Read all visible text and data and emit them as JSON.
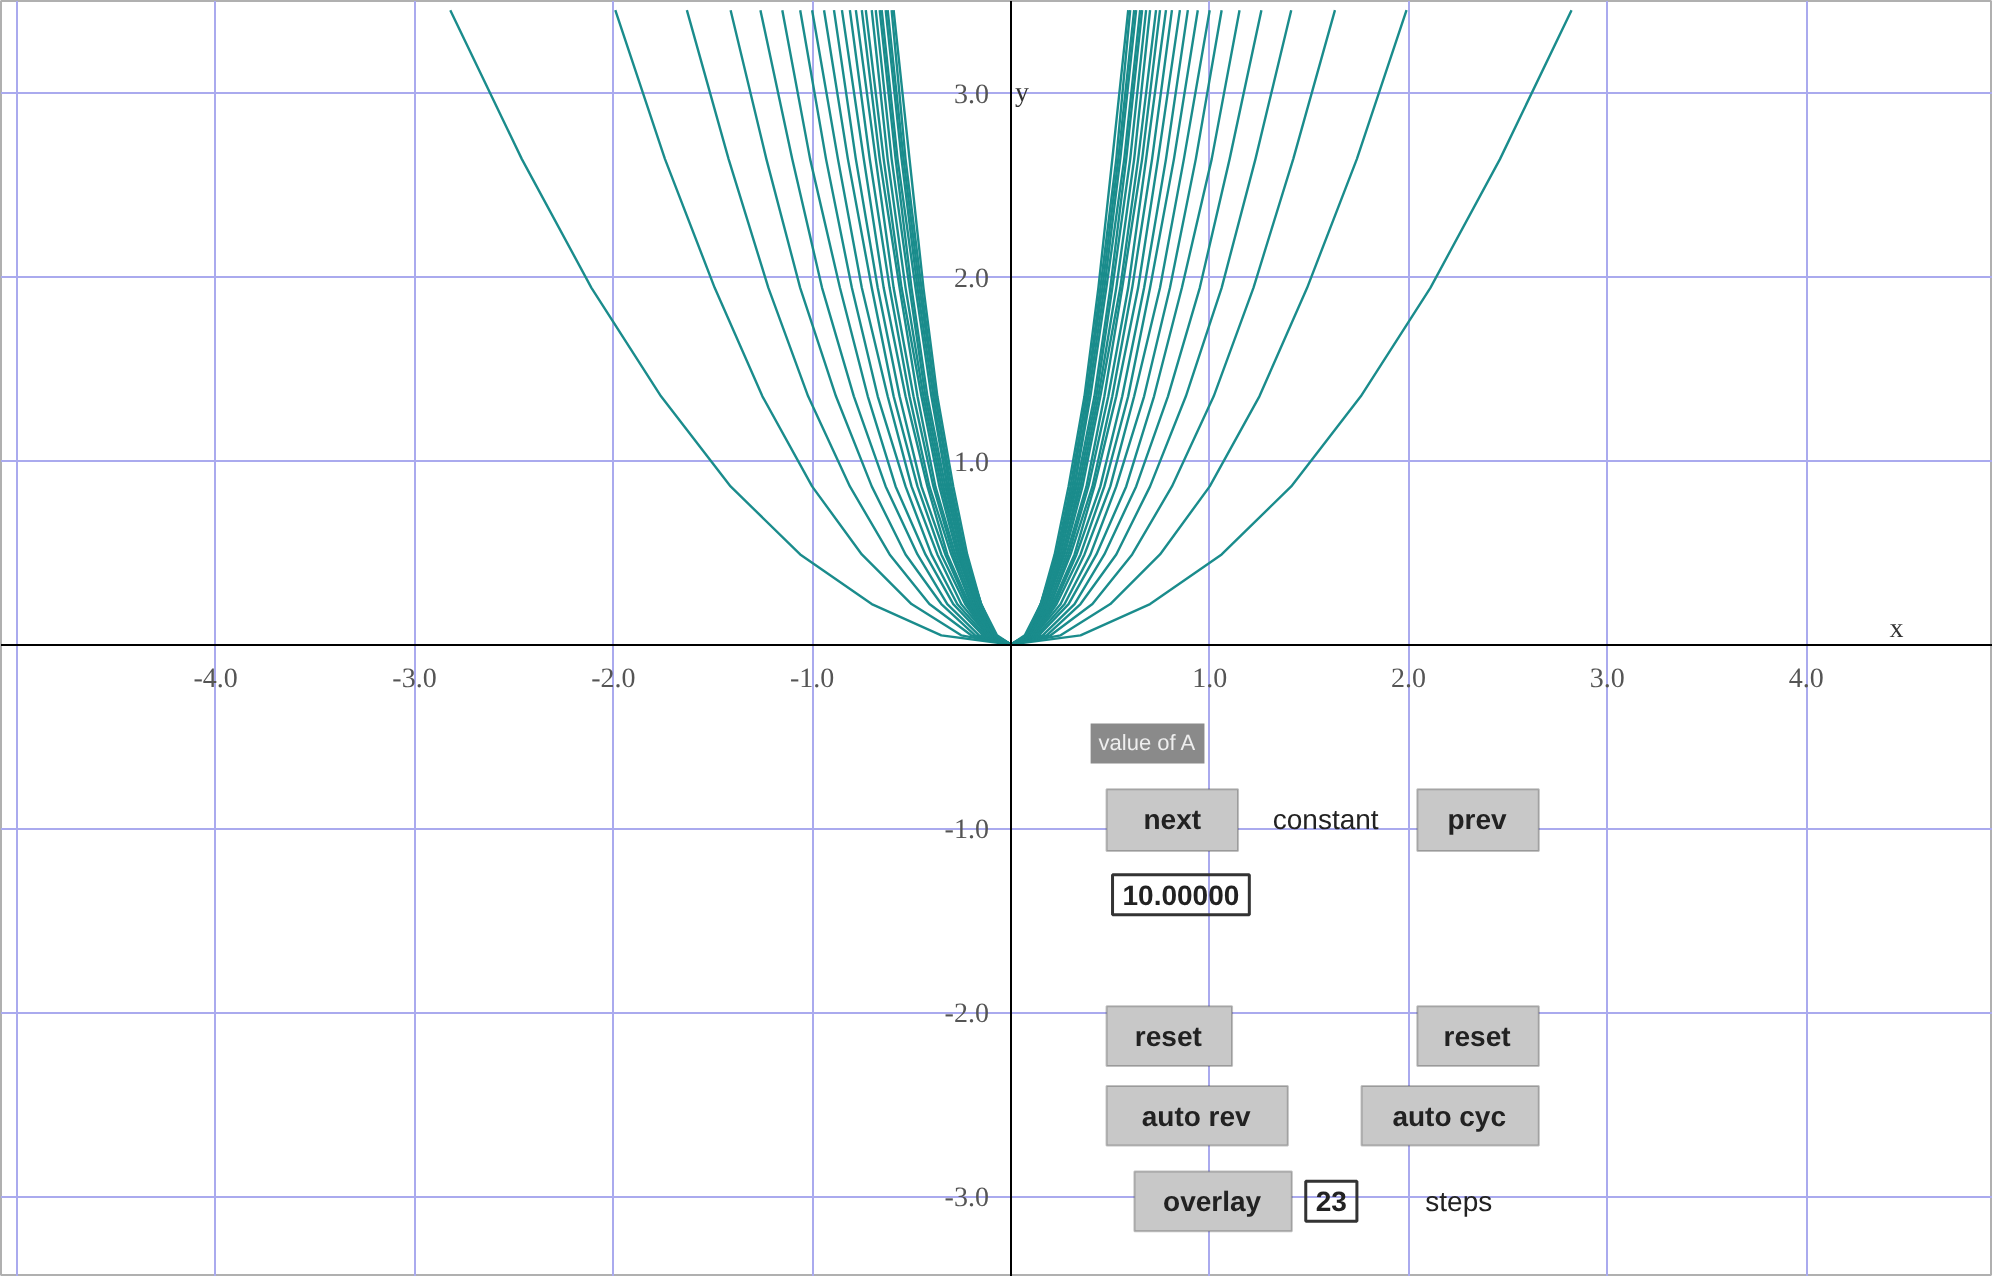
{
  "chart_data": {
    "type": "line",
    "xlabel": "x",
    "ylabel": "y",
    "xlim": [
      -5.08,
      4.94
    ],
    "ylim": [
      -3.44,
      3.5
    ],
    "xticks": [
      {
        "value": -5,
        "label": null
      },
      {
        "value": -4,
        "label": "-4.0"
      },
      {
        "value": -3,
        "label": "-3.0"
      },
      {
        "value": -2,
        "label": "-2.0"
      },
      {
        "value": -1,
        "label": "-1.0"
      },
      {
        "value": 1,
        "label": "1.0"
      },
      {
        "value": 2,
        "label": "2.0"
      },
      {
        "value": 3,
        "label": "3.0"
      },
      {
        "value": 4,
        "label": "4.0"
      }
    ],
    "yticks": [
      {
        "value": -3,
        "label": "-3.0"
      },
      {
        "value": -2,
        "label": "-2.0"
      },
      {
        "value": -1,
        "label": "-1.0"
      },
      {
        "value": 1,
        "label": "1.0"
      },
      {
        "value": 2,
        "label": "2.0"
      },
      {
        "value": 3,
        "label": "3.0"
      }
    ],
    "grid": true,
    "annotations": [
      "value of A",
      "next",
      "constant",
      "prev",
      "10.00000",
      "reset",
      "reset",
      "auto rev",
      "auto cyc",
      "overlay",
      "23",
      "steps"
    ],
    "series": [
      {
        "color": "#1a8c8c",
        "x": [
          -2.82,
          -2.46,
          -2.11,
          -1.76,
          -1.41,
          -1.06,
          -0.7,
          -0.35,
          0,
          0.35,
          0.7,
          1.06,
          1.41,
          1.76,
          2.11,
          2.46,
          2.82
        ],
        "values": [
          3.45,
          2.64,
          1.94,
          1.35,
          0.86,
          0.49,
          0.22,
          0.05,
          0,
          0.05,
          0.22,
          0.49,
          0.86,
          1.35,
          1.94,
          2.64,
          3.45
        ]
      },
      {
        "color": "#1a8c8c",
        "x": [
          -1.99,
          -1.74,
          -1.49,
          -1.25,
          -1.0,
          -0.75,
          -0.5,
          -0.25,
          0,
          0.25,
          0.5,
          0.75,
          1.0,
          1.25,
          1.49,
          1.74,
          1.99
        ],
        "values": [
          3.45,
          2.64,
          1.94,
          1.35,
          0.86,
          0.49,
          0.22,
          0.05,
          0,
          0.05,
          0.22,
          0.49,
          0.86,
          1.35,
          1.94,
          2.64,
          3.45
        ]
      },
      {
        "color": "#1a8c8c",
        "x": [
          -1.63,
          -1.42,
          -1.22,
          -1.02,
          -0.81,
          -0.61,
          -0.41,
          -0.2,
          0,
          0.2,
          0.41,
          0.61,
          0.81,
          1.02,
          1.22,
          1.42,
          1.63
        ],
        "values": [
          3.45,
          2.64,
          1.94,
          1.35,
          0.86,
          0.49,
          0.22,
          0.05,
          0,
          0.05,
          0.22,
          0.49,
          0.86,
          1.35,
          1.94,
          2.64,
          3.45
        ]
      },
      {
        "color": "#1a8c8c",
        "x": [
          -1.41,
          -1.23,
          -1.06,
          -0.88,
          -0.7,
          -0.53,
          -0.35,
          -0.18,
          0,
          0.18,
          0.35,
          0.53,
          0.7,
          0.88,
          1.06,
          1.23,
          1.41
        ],
        "values": [
          3.45,
          2.64,
          1.94,
          1.35,
          0.86,
          0.49,
          0.22,
          0.05,
          0,
          0.05,
          0.22,
          0.49,
          0.86,
          1.35,
          1.94,
          2.64,
          3.45
        ]
      },
      {
        "color": "#1a8c8c",
        "x": [
          -1.26,
          -1.1,
          -0.95,
          -0.79,
          -0.63,
          -0.47,
          -0.32,
          -0.16,
          0,
          0.16,
          0.32,
          0.47,
          0.63,
          0.79,
          0.95,
          1.1,
          1.26
        ],
        "values": [
          3.45,
          2.64,
          1.94,
          1.35,
          0.86,
          0.49,
          0.22,
          0.05,
          0,
          0.05,
          0.22,
          0.49,
          0.86,
          1.35,
          1.94,
          2.64,
          3.45
        ]
      },
      {
        "color": "#1a8c8c",
        "x": [
          -1.15,
          -1.01,
          -0.86,
          -0.72,
          -0.58,
          -0.43,
          -0.29,
          -0.14,
          0,
          0.14,
          0.29,
          0.43,
          0.58,
          0.72,
          0.86,
          1.01,
          1.15
        ],
        "values": [
          3.45,
          2.64,
          1.94,
          1.35,
          0.86,
          0.49,
          0.22,
          0.05,
          0,
          0.05,
          0.22,
          0.49,
          0.86,
          1.35,
          1.94,
          2.64,
          3.45
        ]
      },
      {
        "color": "#1a8c8c",
        "x": [
          -1.06,
          -0.93,
          -0.8,
          -0.67,
          -0.53,
          -0.4,
          -0.27,
          -0.13,
          0,
          0.13,
          0.27,
          0.4,
          0.53,
          0.67,
          0.8,
          0.93,
          1.06
        ],
        "values": [
          3.45,
          2.64,
          1.94,
          1.35,
          0.86,
          0.49,
          0.22,
          0.05,
          0,
          0.05,
          0.22,
          0.49,
          0.86,
          1.35,
          1.94,
          2.64,
          3.45
        ]
      },
      {
        "color": "#1a8c8c",
        "x": [
          -1.0,
          -0.87,
          -0.75,
          -0.62,
          -0.5,
          -0.37,
          -0.25,
          -0.12,
          0,
          0.12,
          0.25,
          0.37,
          0.5,
          0.62,
          0.75,
          0.87,
          1.0
        ],
        "values": [
          3.45,
          2.64,
          1.94,
          1.35,
          0.86,
          0.49,
          0.22,
          0.05,
          0,
          0.05,
          0.22,
          0.49,
          0.86,
          1.35,
          1.94,
          2.64,
          3.45
        ]
      },
      {
        "color": "#1a8c8c",
        "x": [
          -0.94,
          -0.82,
          -0.7,
          -0.59,
          -0.47,
          -0.35,
          -0.23,
          -0.12,
          0,
          0.12,
          0.23,
          0.35,
          0.47,
          0.59,
          0.7,
          0.82,
          0.94
        ],
        "values": [
          3.45,
          2.64,
          1.94,
          1.35,
          0.86,
          0.49,
          0.22,
          0.05,
          0,
          0.05,
          0.22,
          0.49,
          0.86,
          1.35,
          1.94,
          2.64,
          3.45
        ]
      },
      {
        "color": "#1a8c8c",
        "x": [
          -0.89,
          -0.78,
          -0.67,
          -0.56,
          -0.45,
          -0.33,
          -0.22,
          -0.11,
          0,
          0.11,
          0.22,
          0.33,
          0.45,
          0.56,
          0.67,
          0.78,
          0.89
        ],
        "values": [
          3.45,
          2.64,
          1.94,
          1.35,
          0.86,
          0.49,
          0.22,
          0.05,
          0,
          0.05,
          0.22,
          0.49,
          0.86,
          1.35,
          1.94,
          2.64,
          3.45
        ]
      },
      {
        "color": "#1a8c8c",
        "x": [
          -0.85,
          -0.74,
          -0.64,
          -0.53,
          -0.42,
          -0.32,
          -0.21,
          -0.11,
          0,
          0.11,
          0.21,
          0.32,
          0.42,
          0.53,
          0.64,
          0.74,
          0.85
        ],
        "values": [
          3.45,
          2.64,
          1.94,
          1.35,
          0.86,
          0.49,
          0.22,
          0.05,
          0,
          0.05,
          0.22,
          0.49,
          0.86,
          1.35,
          1.94,
          2.64,
          3.45
        ]
      },
      {
        "color": "#1a8c8c",
        "x": [
          -0.81,
          -0.71,
          -0.61,
          -0.51,
          -0.41,
          -0.3,
          -0.2,
          -0.1,
          0,
          0.1,
          0.2,
          0.3,
          0.41,
          0.51,
          0.61,
          0.71,
          0.81
        ],
        "values": [
          3.45,
          2.64,
          1.94,
          1.35,
          0.86,
          0.49,
          0.22,
          0.05,
          0,
          0.05,
          0.22,
          0.49,
          0.86,
          1.35,
          1.94,
          2.64,
          3.45
        ]
      },
      {
        "color": "#1a8c8c",
        "x": [
          -0.78,
          -0.68,
          -0.59,
          -0.49,
          -0.39,
          -0.29,
          -0.2,
          -0.1,
          0,
          0.1,
          0.2,
          0.29,
          0.39,
          0.49,
          0.59,
          0.68,
          0.78
        ],
        "values": [
          3.45,
          2.64,
          1.94,
          1.35,
          0.86,
          0.49,
          0.22,
          0.05,
          0,
          0.05,
          0.22,
          0.49,
          0.86,
          1.35,
          1.94,
          2.64,
          3.45
        ]
      },
      {
        "color": "#1a8c8c",
        "x": [
          -0.75,
          -0.66,
          -0.56,
          -0.47,
          -0.38,
          -0.28,
          -0.19,
          -0.09,
          0,
          0.09,
          0.19,
          0.28,
          0.38,
          0.47,
          0.56,
          0.66,
          0.75
        ],
        "values": [
          3.45,
          2.64,
          1.94,
          1.35,
          0.86,
          0.49,
          0.22,
          0.05,
          0,
          0.05,
          0.22,
          0.49,
          0.86,
          1.35,
          1.94,
          2.64,
          3.45
        ]
      },
      {
        "color": "#1a8c8c",
        "x": [
          -0.73,
          -0.64,
          -0.55,
          -0.45,
          -0.36,
          -0.27,
          -0.18,
          -0.09,
          0,
          0.09,
          0.18,
          0.27,
          0.36,
          0.45,
          0.55,
          0.64,
          0.73
        ],
        "values": [
          3.45,
          2.64,
          1.94,
          1.35,
          0.86,
          0.49,
          0.22,
          0.05,
          0,
          0.05,
          0.22,
          0.49,
          0.86,
          1.35,
          1.94,
          2.64,
          3.45
        ]
      },
      {
        "color": "#1a8c8c",
        "x": [
          -0.7,
          -0.62,
          -0.53,
          -0.44,
          -0.35,
          -0.26,
          -0.18,
          -0.09,
          0,
          0.09,
          0.18,
          0.26,
          0.35,
          0.44,
          0.53,
          0.62,
          0.7
        ],
        "values": [
          3.45,
          2.64,
          1.94,
          1.35,
          0.86,
          0.49,
          0.22,
          0.05,
          0,
          0.05,
          0.22,
          0.49,
          0.86,
          1.35,
          1.94,
          2.64,
          3.45
        ]
      },
      {
        "color": "#1a8c8c",
        "x": [
          -0.68,
          -0.6,
          -0.51,
          -0.43,
          -0.34,
          -0.26,
          -0.17,
          -0.09,
          0,
          0.09,
          0.17,
          0.26,
          0.34,
          0.43,
          0.51,
          0.6,
          0.68
        ],
        "values": [
          3.45,
          2.64,
          1.94,
          1.35,
          0.86,
          0.49,
          0.22,
          0.05,
          0,
          0.05,
          0.22,
          0.49,
          0.86,
          1.35,
          1.94,
          2.64,
          3.45
        ]
      },
      {
        "color": "#1a8c8c",
        "x": [
          -0.66,
          -0.58,
          -0.5,
          -0.42,
          -0.33,
          -0.25,
          -0.17,
          -0.08,
          0,
          0.08,
          0.17,
          0.25,
          0.33,
          0.42,
          0.5,
          0.58,
          0.66
        ],
        "values": [
          3.45,
          2.64,
          1.94,
          1.35,
          0.86,
          0.49,
          0.22,
          0.05,
          0,
          0.05,
          0.22,
          0.49,
          0.86,
          1.35,
          1.94,
          2.64,
          3.45
        ]
      },
      {
        "color": "#1a8c8c",
        "x": [
          -0.65,
          -0.57,
          -0.48,
          -0.4,
          -0.32,
          -0.24,
          -0.16,
          -0.08,
          0,
          0.08,
          0.16,
          0.24,
          0.32,
          0.4,
          0.48,
          0.57,
          0.65
        ],
        "values": [
          3.45,
          2.64,
          1.94,
          1.35,
          0.86,
          0.49,
          0.22,
          0.05,
          0,
          0.05,
          0.22,
          0.49,
          0.86,
          1.35,
          1.94,
          2.64,
          3.45
        ]
      },
      {
        "color": "#1a8c8c",
        "x": [
          -0.63,
          -0.55,
          -0.47,
          -0.39,
          -0.32,
          -0.24,
          -0.16,
          -0.08,
          0,
          0.08,
          0.16,
          0.24,
          0.32,
          0.39,
          0.47,
          0.55,
          0.63
        ],
        "values": [
          3.45,
          2.64,
          1.94,
          1.35,
          0.86,
          0.49,
          0.22,
          0.05,
          0,
          0.05,
          0.22,
          0.49,
          0.86,
          1.35,
          1.94,
          2.64,
          3.45
        ]
      },
      {
        "color": "#1a8c8c",
        "x": [
          -0.62,
          -0.54,
          -0.46,
          -0.38,
          -0.31,
          -0.23,
          -0.15,
          -0.08,
          0,
          0.08,
          0.15,
          0.23,
          0.31,
          0.38,
          0.46,
          0.54,
          0.62
        ],
        "values": [
          3.45,
          2.64,
          1.94,
          1.35,
          0.86,
          0.49,
          0.22,
          0.05,
          0,
          0.05,
          0.22,
          0.49,
          0.86,
          1.35,
          1.94,
          2.64,
          3.45
        ]
      },
      {
        "color": "#1a8c8c",
        "x": [
          -0.6,
          -0.53,
          -0.45,
          -0.38,
          -0.3,
          -0.23,
          -0.15,
          -0.08,
          0,
          0.08,
          0.15,
          0.23,
          0.3,
          0.38,
          0.45,
          0.53,
          0.6
        ],
        "values": [
          3.45,
          2.64,
          1.94,
          1.35,
          0.86,
          0.49,
          0.22,
          0.05,
          0,
          0.05,
          0.22,
          0.49,
          0.86,
          1.35,
          1.94,
          2.64,
          3.45
        ]
      },
      {
        "color": "#1a8c8c",
        "x": [
          -0.59,
          -0.51,
          -0.44,
          -0.37,
          -0.29,
          -0.22,
          -0.15,
          -0.07,
          0,
          0.07,
          0.15,
          0.22,
          0.29,
          0.37,
          0.44,
          0.51,
          0.59
        ],
        "values": [
          3.45,
          2.64,
          1.94,
          1.35,
          0.86,
          0.49,
          0.22,
          0.05,
          0,
          0.05,
          0.22,
          0.49,
          0.86,
          1.35,
          1.94,
          2.64,
          3.45
        ]
      }
    ]
  }
}
